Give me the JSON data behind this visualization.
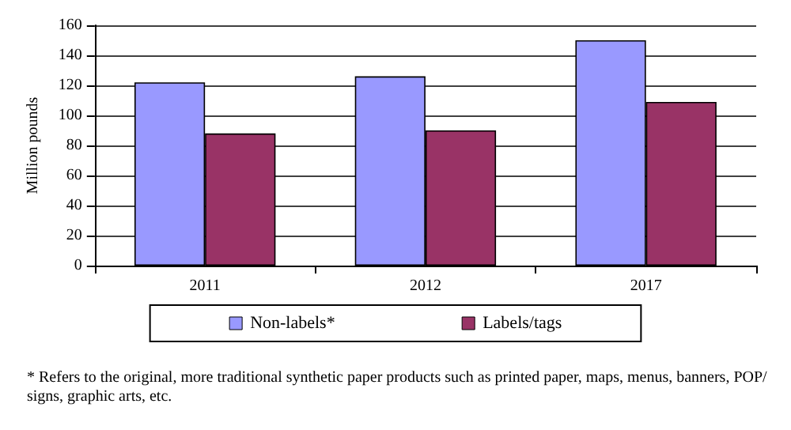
{
  "chart_data": {
    "type": "bar",
    "ylabel": "Million pounds",
    "categories": [
      "2011",
      "2012",
      "2017"
    ],
    "series": [
      {
        "name": "Non-labels*",
        "color": "#9999ff",
        "values": [
          122,
          126,
          150
        ]
      },
      {
        "name": "Labels/tags",
        "color": "#993366",
        "values": [
          88,
          90,
          109
        ]
      }
    ],
    "ylim": [
      0,
      160
    ],
    "yticks": [
      0,
      20,
      40,
      60,
      80,
      100,
      120,
      140,
      160
    ],
    "grid": "y",
    "legend": "bottom",
    "annotations": [
      "* Refers to the original, more traditional synthetic paper products such as printed paper, maps, menus, banners, POP/signs, graphic arts, etc."
    ]
  }
}
